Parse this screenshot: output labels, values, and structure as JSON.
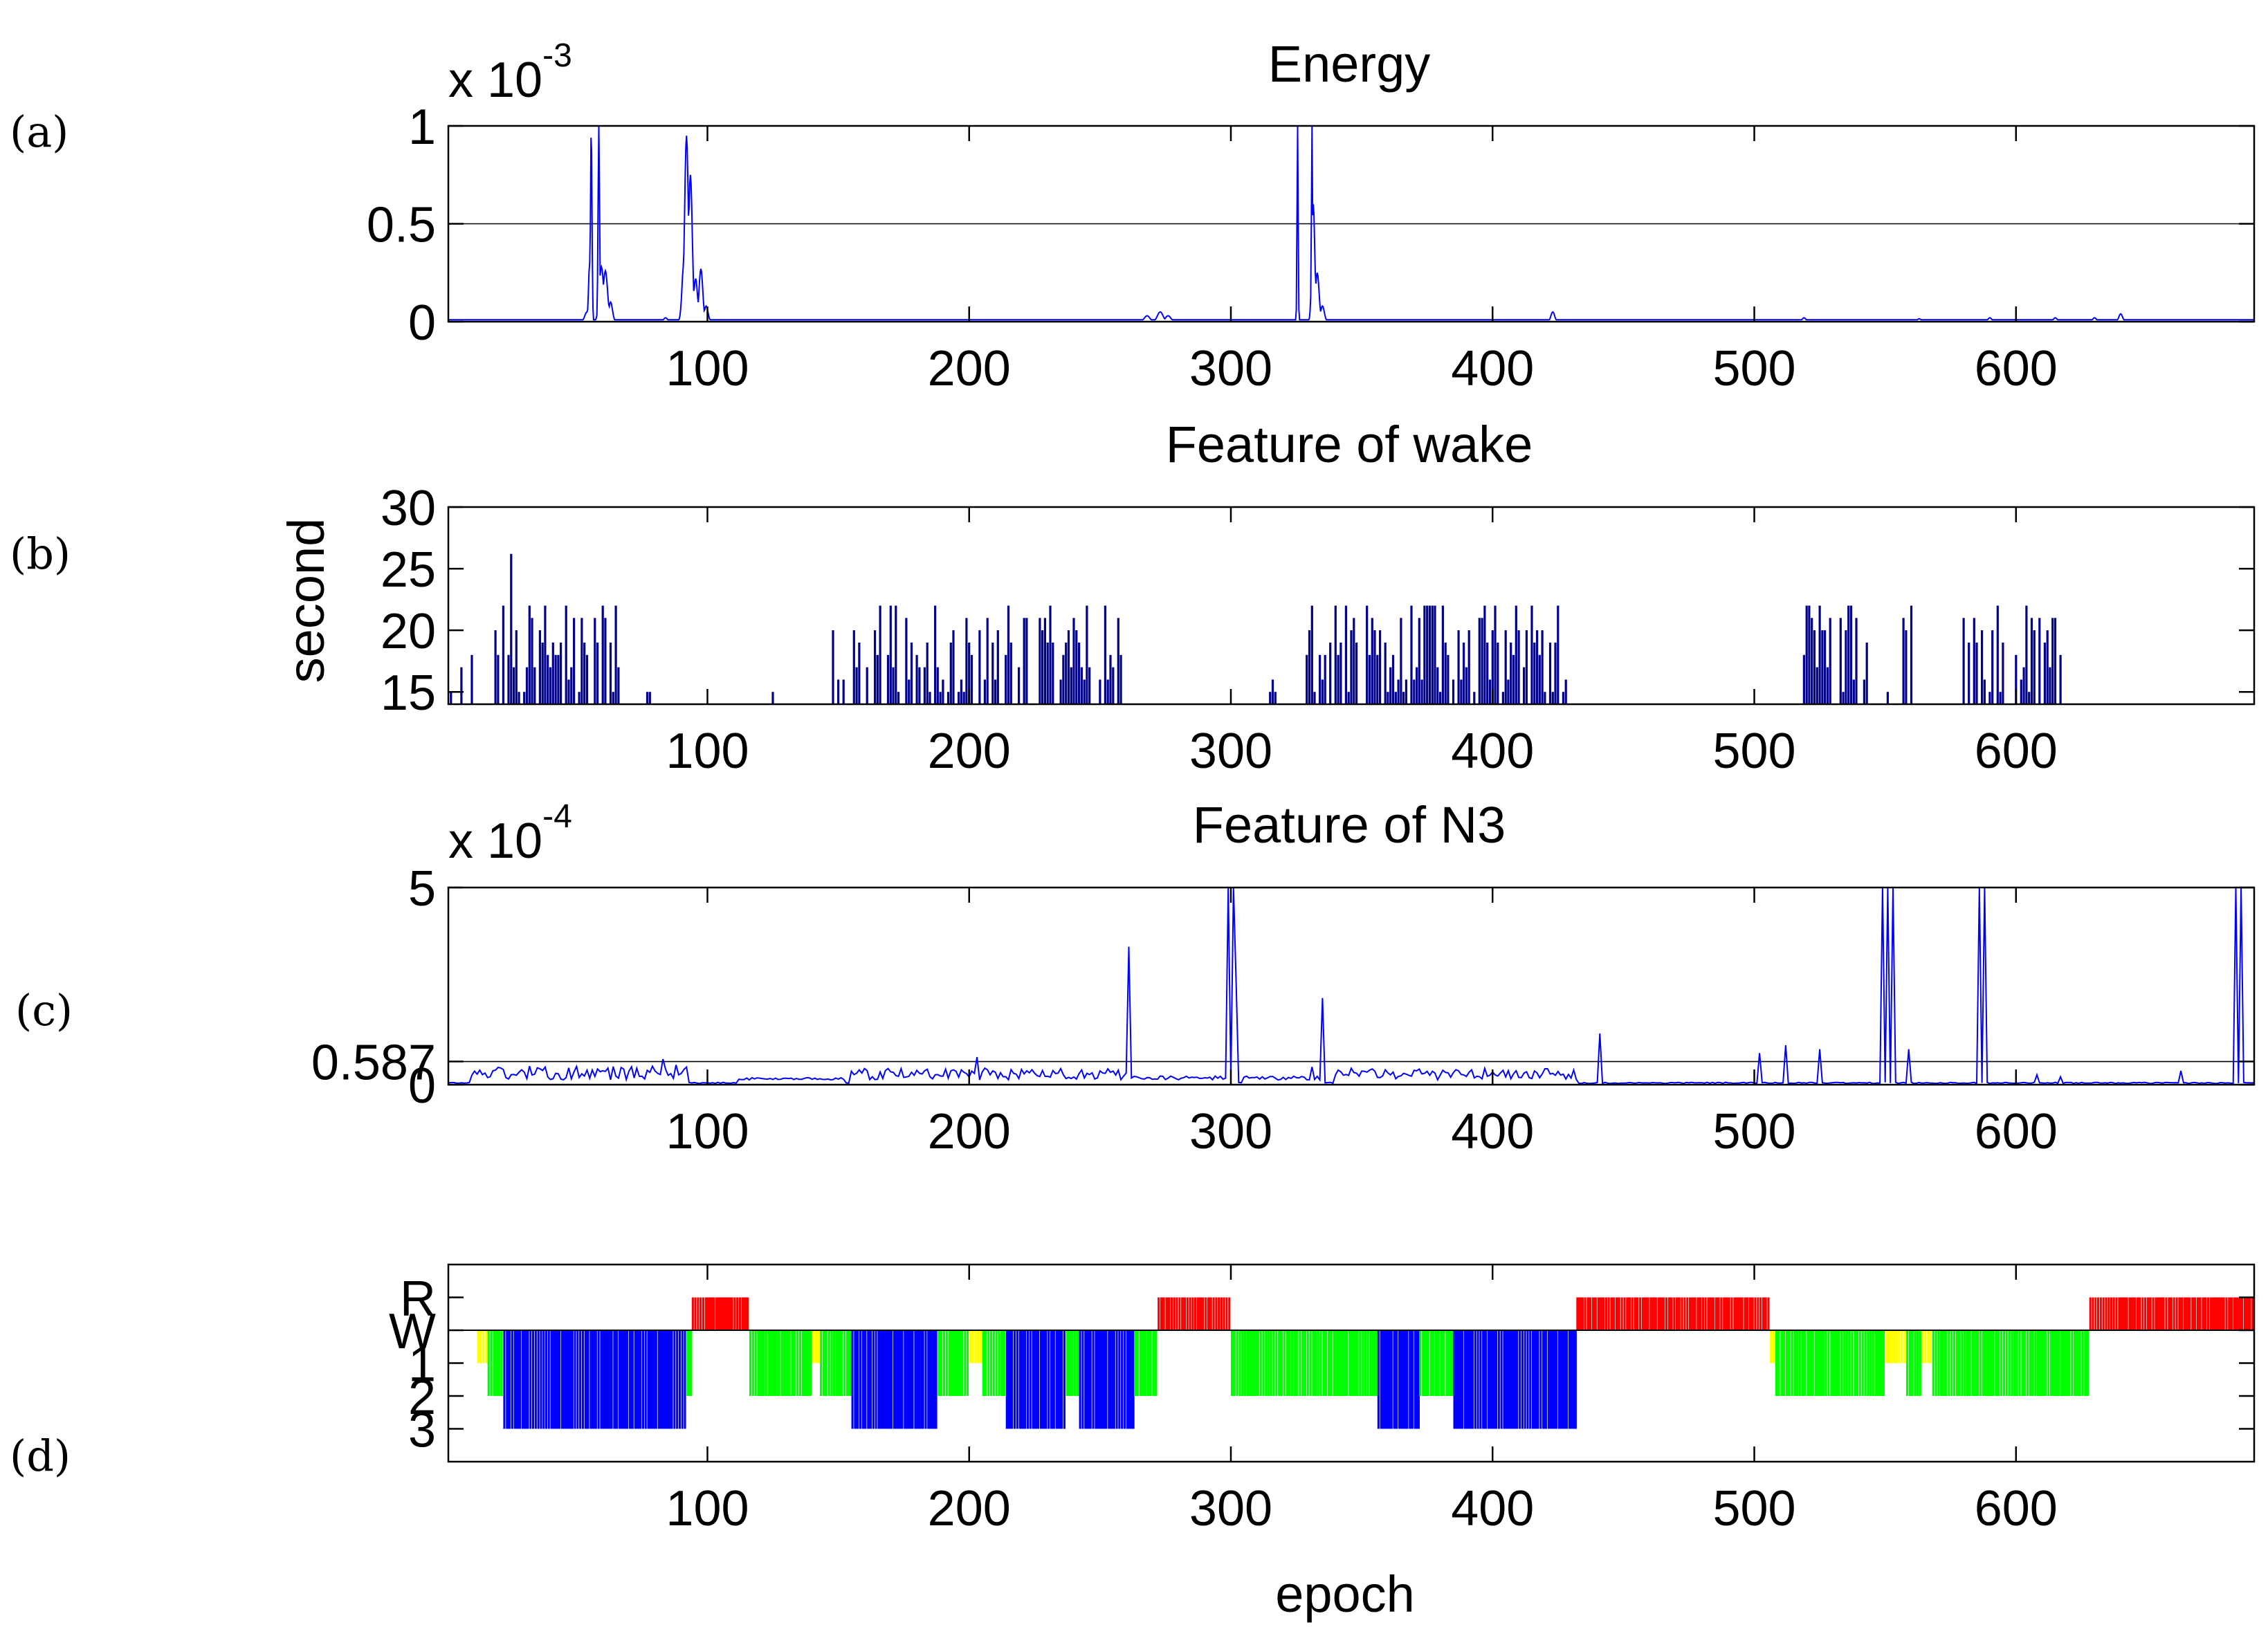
{
  "figure": {
    "panel_labels": [
      "(a)",
      "(b)",
      "(c)",
      "(d)"
    ]
  },
  "chart_data": [
    {
      "id": "a",
      "type": "line",
      "title": "Energy",
      "exponent_prefix": "x 10",
      "exponent": "-3",
      "xlabel": "",
      "ylabel": "",
      "xlim": [
        1,
        691
      ],
      "ylim": [
        0,
        1
      ],
      "xticks": [
        100,
        200,
        300,
        400,
        500,
        600
      ],
      "yticks": [
        0,
        0.5,
        1
      ],
      "ytick_labels": [
        "0",
        "0.5",
        "1"
      ],
      "gridlines_y": [
        0.5
      ],
      "color": "#0000ff",
      "baseline": 0.01,
      "peaks": [
        {
          "x": 54,
          "y": 0.05,
          "w": 1.2
        },
        {
          "x": 55,
          "y": 0.3,
          "w": 0.6
        },
        {
          "x": 55.6,
          "y": 1.0,
          "w": 0.4
        },
        {
          "x": 58.5,
          "y": 1.0,
          "w": 0.4
        },
        {
          "x": 59.5,
          "y": 0.28,
          "w": 1.2
        },
        {
          "x": 61,
          "y": 0.26,
          "w": 1.2
        },
        {
          "x": 63,
          "y": 0.1,
          "w": 1.0
        },
        {
          "x": 84,
          "y": 0.02,
          "w": 1.0
        },
        {
          "x": 91,
          "y": 0.3,
          "w": 1.0
        },
        {
          "x": 92,
          "y": 0.95,
          "w": 1.0
        },
        {
          "x": 93.5,
          "y": 0.75,
          "w": 1.0
        },
        {
          "x": 95.5,
          "y": 0.22,
          "w": 1.0
        },
        {
          "x": 97.5,
          "y": 0.27,
          "w": 1.0
        },
        {
          "x": 99.5,
          "y": 0.08,
          "w": 1.0
        },
        {
          "x": 268,
          "y": 0.03,
          "w": 1.5
        },
        {
          "x": 273,
          "y": 0.05,
          "w": 1.5
        },
        {
          "x": 276,
          "y": 0.03,
          "w": 1.5
        },
        {
          "x": 325.5,
          "y": 1.0,
          "w": 0.3
        },
        {
          "x": 331,
          "y": 1.0,
          "w": 0.3
        },
        {
          "x": 331.5,
          "y": 0.6,
          "w": 0.8
        },
        {
          "x": 333,
          "y": 0.25,
          "w": 1.0
        },
        {
          "x": 335,
          "y": 0.08,
          "w": 1.0
        },
        {
          "x": 423,
          "y": 0.05,
          "w": 1.0
        },
        {
          "x": 519,
          "y": 0.02,
          "w": 1.0
        },
        {
          "x": 563,
          "y": 0.015,
          "w": 1.0
        },
        {
          "x": 590,
          "y": 0.02,
          "w": 1.0
        },
        {
          "x": 615,
          "y": 0.02,
          "w": 1.0
        },
        {
          "x": 630,
          "y": 0.02,
          "w": 1.0
        },
        {
          "x": 640,
          "y": 0.04,
          "w": 1.0
        }
      ]
    },
    {
      "id": "b",
      "type": "bar",
      "title": "Feature of wake",
      "xlabel": "",
      "ylabel": "second",
      "xlim": [
        1,
        691
      ],
      "ylim": [
        14,
        30
      ],
      "baseline_value": 14,
      "xticks": [
        100,
        200,
        300,
        400,
        500,
        600
      ],
      "yticks": [
        15,
        20,
        25,
        30
      ],
      "ytick_labels": [
        "15",
        "20",
        "25",
        "30"
      ],
      "color": "#00008b",
      "clusters": [
        {
          "start": 2,
          "end": 10,
          "min": 14,
          "max": 19,
          "p": 0.45
        },
        {
          "start": 18,
          "end": 66,
          "min": 14,
          "max": 22,
          "p": 0.78
        },
        {
          "start": 75,
          "end": 78,
          "min": 14,
          "max": 15,
          "p": 0.4
        },
        {
          "start": 125,
          "end": 126,
          "min": 14,
          "max": 15,
          "p": 0.6
        },
        {
          "start": 148,
          "end": 258,
          "min": 14,
          "max": 22,
          "p": 0.62
        },
        {
          "start": 315,
          "end": 318,
          "min": 14,
          "max": 17,
          "p": 0.5
        },
        {
          "start": 328,
          "end": 428,
          "min": 14,
          "max": 22,
          "p": 0.8
        },
        {
          "start": 518,
          "end": 562,
          "min": 14,
          "max": 22,
          "p": 0.5
        },
        {
          "start": 578,
          "end": 617,
          "min": 14,
          "max": 22,
          "p": 0.72
        }
      ],
      "highlight_bars": [
        {
          "x": 25,
          "y": 26.2
        },
        {
          "x": 170,
          "y": 22
        },
        {
          "x": 376,
          "y": 22
        },
        {
          "x": 560,
          "y": 22
        },
        {
          "x": 604,
          "y": 22
        }
      ]
    },
    {
      "id": "c",
      "type": "line",
      "title": "Feature of N3",
      "exponent_prefix": "x 10",
      "exponent": "-4",
      "xlabel": "",
      "ylabel": "",
      "xlim": [
        1,
        691
      ],
      "ylim": [
        0,
        5
      ],
      "xticks": [
        100,
        200,
        300,
        400,
        500,
        600
      ],
      "yticks": [
        0,
        0.587,
        5
      ],
      "ytick_labels": [
        "0",
        "0.587",
        "5"
      ],
      "gridlines_y": [
        0.587
      ],
      "color": "#0000ff",
      "noisy_ranges": [
        {
          "start": 10,
          "end": 92,
          "amp": 0.35
        },
        {
          "start": 155,
          "end": 262,
          "amp": 0.3
        },
        {
          "start": 340,
          "end": 432,
          "amp": 0.3
        },
        {
          "start": 112,
          "end": 152,
          "amp": 0.06
        },
        {
          "start": 263,
          "end": 300,
          "amp": 0.1
        },
        {
          "start": 305,
          "end": 335,
          "amp": 0.1
        }
      ],
      "spikes": [
        {
          "x": 83,
          "y": 0.65
        },
        {
          "x": 88,
          "y": 0.5
        },
        {
          "x": 203,
          "y": 0.7
        },
        {
          "x": 261,
          "y": 3.5
        },
        {
          "x": 299,
          "y": 5.0
        },
        {
          "x": 300.5,
          "y": 5.0
        },
        {
          "x": 302,
          "y": 2.6
        },
        {
          "x": 331,
          "y": 0.45
        },
        {
          "x": 335,
          "y": 2.2
        },
        {
          "x": 441,
          "y": 1.3
        },
        {
          "x": 502,
          "y": 0.8
        },
        {
          "x": 512,
          "y": 1.0
        },
        {
          "x": 525,
          "y": 0.9
        },
        {
          "x": 549,
          "y": 5.0
        },
        {
          "x": 551,
          "y": 5.0
        },
        {
          "x": 553,
          "y": 5.0
        },
        {
          "x": 559,
          "y": 0.9
        },
        {
          "x": 586,
          "y": 5.0
        },
        {
          "x": 588,
          "y": 5.0
        },
        {
          "x": 608,
          "y": 0.25
        },
        {
          "x": 617,
          "y": 0.2
        },
        {
          "x": 663,
          "y": 0.35
        },
        {
          "x": 684,
          "y": 5.0
        },
        {
          "x": 686,
          "y": 5.0
        }
      ]
    },
    {
      "id": "d",
      "type": "bar",
      "title": "",
      "xlabel": "epoch",
      "ylabel": "",
      "xlim": [
        1,
        691
      ],
      "ylim": [
        -4,
        2
      ],
      "xticks": [
        100,
        200,
        300,
        400,
        500,
        600
      ],
      "xtick_labels": [
        "100",
        "200",
        "300",
        "400",
        "500",
        "600"
      ],
      "yticks": [
        1,
        0,
        -1,
        -2,
        -3
      ],
      "ytick_labels": [
        "R",
        "W",
        "1",
        "2",
        "3"
      ],
      "colors": {
        "R": "#ff0000",
        "W": "#ffffff",
        "1": "#ffff00",
        "2": "#00ff00",
        "3": "#0000ff"
      },
      "segments": [
        {
          "start": 12,
          "end": 16,
          "stage": "1"
        },
        {
          "start": 16,
          "end": 22,
          "stage": "2"
        },
        {
          "start": 22,
          "end": 92,
          "stage": "3"
        },
        {
          "start": 92,
          "end": 94,
          "stage": "2"
        },
        {
          "start": 94,
          "end": 116,
          "stage": "R"
        },
        {
          "start": 116,
          "end": 140,
          "stage": "2"
        },
        {
          "start": 140,
          "end": 143,
          "stage": "1"
        },
        {
          "start": 143,
          "end": 155,
          "stage": "2"
        },
        {
          "start": 155,
          "end": 188,
          "stage": "3"
        },
        {
          "start": 188,
          "end": 200,
          "stage": "2"
        },
        {
          "start": 200,
          "end": 205,
          "stage": "1"
        },
        {
          "start": 205,
          "end": 214,
          "stage": "2"
        },
        {
          "start": 214,
          "end": 237,
          "stage": "3"
        },
        {
          "start": 237,
          "end": 242,
          "stage": "2"
        },
        {
          "start": 242,
          "end": 263,
          "stage": "3"
        },
        {
          "start": 263,
          "end": 272,
          "stage": "2"
        },
        {
          "start": 272,
          "end": 300,
          "stage": "R"
        },
        {
          "start": 300,
          "end": 356,
          "stage": "2"
        },
        {
          "start": 356,
          "end": 372,
          "stage": "3"
        },
        {
          "start": 372,
          "end": 385,
          "stage": "2"
        },
        {
          "start": 385,
          "end": 432,
          "stage": "3"
        },
        {
          "start": 432,
          "end": 506,
          "stage": "R"
        },
        {
          "start": 506,
          "end": 508,
          "stage": "1"
        },
        {
          "start": 508,
          "end": 550,
          "stage": "2"
        },
        {
          "start": 550,
          "end": 558,
          "stage": "1"
        },
        {
          "start": 558,
          "end": 564,
          "stage": "2"
        },
        {
          "start": 564,
          "end": 568,
          "stage": "1"
        },
        {
          "start": 568,
          "end": 628,
          "stage": "2"
        },
        {
          "start": 628,
          "end": 691,
          "stage": "R"
        }
      ]
    }
  ]
}
